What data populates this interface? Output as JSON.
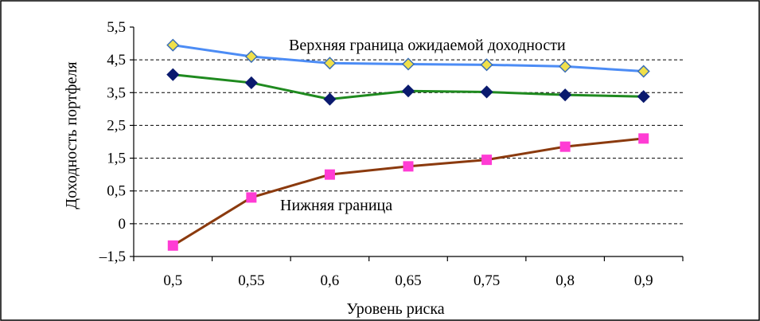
{
  "chart_data": {
    "type": "line",
    "categories": [
      "0,5",
      "0,55",
      "0,6",
      "0,65",
      "0,75",
      "0,8",
      "0,9"
    ],
    "y_ticks": [
      {
        "value": 5.5,
        "label": "5,5"
      },
      {
        "value": 4.5,
        "label": "4,5"
      },
      {
        "value": 3.5,
        "label": "3,5"
      },
      {
        "value": 2.5,
        "label": "2,5"
      },
      {
        "value": 1.5,
        "label": "1,5"
      },
      {
        "value": 0.5,
        "label": "0,5"
      },
      {
        "value": 0,
        "label": "0"
      },
      {
        "value": -1.5,
        "label": "–1,5"
      }
    ],
    "ylim": [
      -1.5,
      5.5
    ],
    "xlabel": "Уровень риска",
    "ylabel": "Доходность портфеля",
    "grid": "horizontal dashed",
    "legend": "none",
    "annotations": {
      "upper": "Верхняя граница ожидаемой доходности",
      "lower": "Нижняя граница"
    },
    "series": [
      {
        "values": [
          4.95,
          4.6,
          4.4,
          4.37,
          4.35,
          4.3,
          4.15
        ],
        "line_color": "#4c8cf5",
        "marker": "diamond",
        "marker_fill": "#f0e04a",
        "marker_stroke": "#3c6fb4"
      },
      {
        "values": [
          4.05,
          3.8,
          3.3,
          3.55,
          3.52,
          3.43,
          3.38
        ],
        "line_color": "#1f8a1f",
        "marker": "diamond",
        "marker_fill": "#0a1a6e",
        "marker_stroke": "#0a1a6e"
      },
      {
        "values": [
          -1.0,
          0.4,
          1.0,
          1.25,
          1.45,
          1.85,
          2.1
        ],
        "line_color": "#8b3a0e",
        "marker": "square",
        "marker_fill": "#ff3cd4",
        "marker_stroke": "#ff3cd4"
      }
    ]
  }
}
